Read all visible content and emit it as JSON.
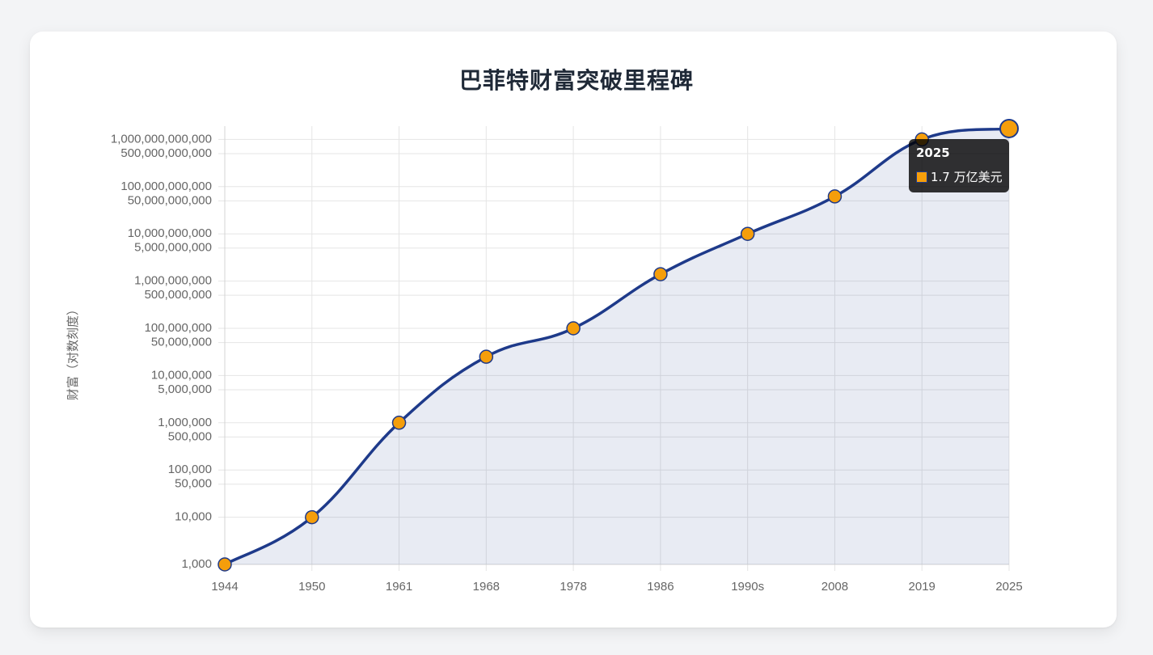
{
  "page": {
    "title": "巴菲特财富突破里程碑"
  },
  "colors": {
    "line": "#1e3a8a",
    "fill": "rgba(30,58,138,0.1)",
    "point": "#f59e0b",
    "point_border": "#1e3a8a",
    "grid": "#e5e5e5",
    "tick_text": "#666666",
    "background": "#f3f4f6",
    "card": "#ffffff"
  },
  "tooltip": {
    "title": "2025",
    "label": "1.7 万亿美元",
    "swatch_color": "#f59e0b"
  },
  "chart_data": {
    "type": "line",
    "title": "巴菲特财富突破里程碑",
    "xlabel": "",
    "ylabel": "财富（对数刻度）",
    "yscale": "log",
    "ylim": [
      1000,
      1700000000000
    ],
    "grid": true,
    "legend": "none",
    "fill": true,
    "categories": [
      "1944",
      "1950",
      "1961",
      "1968",
      "1978",
      "1986",
      "1990s",
      "2008",
      "2019",
      "2025"
    ],
    "values": [
      1000,
      10000,
      1000000,
      25000000,
      100000000,
      1400000000,
      10000000000,
      62000000000,
      1000000000000,
      1700000000000
    ],
    "y_ticks": [
      {
        "value": 1000,
        "label": "1,000"
      },
      {
        "value": 10000,
        "label": "10,000"
      },
      {
        "value": 50000,
        "label": "50,000"
      },
      {
        "value": 100000,
        "label": "100,000"
      },
      {
        "value": 500000,
        "label": "500,000"
      },
      {
        "value": 1000000,
        "label": "1,000,000"
      },
      {
        "value": 5000000,
        "label": "5,000,000"
      },
      {
        "value": 10000000,
        "label": "10,000,000"
      },
      {
        "value": 50000000,
        "label": "50,000,000"
      },
      {
        "value": 100000000,
        "label": "100,000,000"
      },
      {
        "value": 500000000,
        "label": "500,000,000"
      },
      {
        "value": 1000000000,
        "label": "1,000,000,000"
      },
      {
        "value": 5000000000,
        "label": "5,000,000,000"
      },
      {
        "value": 10000000000,
        "label": "10,000,000,000"
      },
      {
        "value": 50000000000,
        "label": "50,000,000,000"
      },
      {
        "value": 100000000000,
        "label": "100,000,000,000"
      },
      {
        "value": 500000000000,
        "label": "500,000,000,000"
      },
      {
        "value": 1000000000000,
        "label": "1,000,000,000,000"
      }
    ],
    "active_point": {
      "index": 9,
      "category": "2025",
      "label": "1.7 万亿美元"
    }
  }
}
